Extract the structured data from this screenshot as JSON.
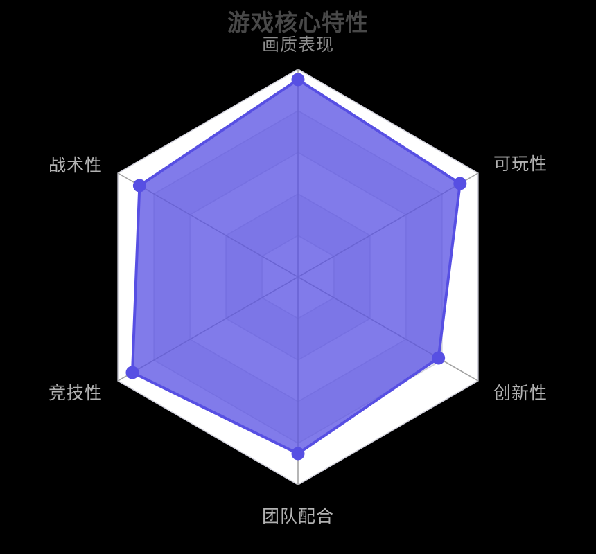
{
  "chart_data": {
    "type": "radar",
    "title": "游戏核心特性",
    "max": 100,
    "levels": 5,
    "grid": true,
    "legend": false,
    "indicators": [
      {
        "name": "画质表现",
        "value": 95,
        "position": "top"
      },
      {
        "name": "可玩性",
        "value": 90,
        "position": "right-upper"
      },
      {
        "name": "创新性",
        "value": 78,
        "position": "right-lower"
      },
      {
        "name": "团队配合",
        "value": 85,
        "position": "bottom"
      },
      {
        "name": "竞技性",
        "value": 92,
        "position": "left-lower"
      },
      {
        "name": "战术性",
        "value": 88,
        "position": "left-upper"
      }
    ],
    "colors": {
      "background": "#000000",
      "accent": "#574fe3",
      "fill_opacity": 0.75,
      "point_fill": "#574fe3",
      "grid_ring_line": "#d2d2dc",
      "axis_spoke_line": "#a3a3a3",
      "split_area_even": "#ffffff",
      "split_area_odd": "#ebebf3",
      "title_color": "#484848",
      "axis_label_color": "#b2b2b2",
      "top_axis_label_color": "#8d8d8d"
    }
  }
}
